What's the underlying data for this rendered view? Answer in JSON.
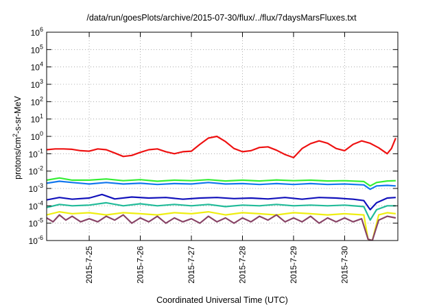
{
  "chart_data": {
    "type": "line",
    "title": "/data/run/goesPlots/archive/2015-07-30/flux/../flux/7daysMarsFluxes.txt",
    "xlabel": "Coordinated Universal Time (UTC)",
    "ylabel": {
      "prefix": "protons/cm",
      "sup": "2",
      "suffix": "-s-sr-MeV"
    },
    "y_scale": "log",
    "ylim": [
      1e-06,
      1000000.0
    ],
    "y_ticks": [
      {
        "value": 1e-06,
        "base": "10",
        "exp": "-6"
      },
      {
        "value": 1e-05,
        "base": "10",
        "exp": "-5"
      },
      {
        "value": 0.0001,
        "base": "10",
        "exp": "-4"
      },
      {
        "value": 0.001,
        "base": "10",
        "exp": "-3"
      },
      {
        "value": 0.01,
        "base": "10",
        "exp": "-2"
      },
      {
        "value": 0.1,
        "base": "10",
        "exp": "-1"
      },
      {
        "value": 1.0,
        "base": "10",
        "exp": "0"
      },
      {
        "value": 10.0,
        "base": "10",
        "exp": "1"
      },
      {
        "value": 100.0,
        "base": "10",
        "exp": "2"
      },
      {
        "value": 1000.0,
        "base": "10",
        "exp": "3"
      },
      {
        "value": 10000.0,
        "base": "10",
        "exp": "4"
      },
      {
        "value": 100000.0,
        "base": "10",
        "exp": "5"
      },
      {
        "value": 1000000.0,
        "base": "10",
        "exp": "6"
      }
    ],
    "x_range": [
      "2015-07-24T04:00",
      "2015-07-31T01:00"
    ],
    "x_ticks": [
      {
        "date": "2015-07-25",
        "label": "2015-7-25"
      },
      {
        "date": "2015-07-26",
        "label": "2015-7-26"
      },
      {
        "date": "2015-07-27",
        "label": "2015-7-27"
      },
      {
        "date": "2015-07-28",
        "label": "2015-7-28"
      },
      {
        "date": "2015-07-29",
        "label": "2015-7-29"
      },
      {
        "date": "2015-07-30",
        "label": "2015-7-30"
      }
    ],
    "grid": true,
    "grid_style": "dotted",
    "legend": "none",
    "series": [
      {
        "color": "#ee1111",
        "points": [
          [
            "2015-07-24T04:00",
            0.17
          ],
          [
            "2015-07-24T08:00",
            0.19
          ],
          [
            "2015-07-24T12:00",
            0.19
          ],
          [
            "2015-07-24T16:00",
            0.18
          ],
          [
            "2015-07-24T20:00",
            0.15
          ],
          [
            "2015-07-25T00:00",
            0.14
          ],
          [
            "2015-07-25T04:00",
            0.19
          ],
          [
            "2015-07-25T08:00",
            0.17
          ],
          [
            "2015-07-25T12:00",
            0.11
          ],
          [
            "2015-07-25T16:00",
            0.07
          ],
          [
            "2015-07-25T20:00",
            0.08
          ],
          [
            "2015-07-26T00:00",
            0.12
          ],
          [
            "2015-07-26T04:00",
            0.17
          ],
          [
            "2015-07-26T08:00",
            0.19
          ],
          [
            "2015-07-26T12:00",
            0.13
          ],
          [
            "2015-07-26T16:00",
            0.1
          ],
          [
            "2015-07-26T20:00",
            0.13
          ],
          [
            "2015-07-27T00:00",
            0.14
          ],
          [
            "2015-07-27T04:00",
            0.35
          ],
          [
            "2015-07-27T08:00",
            0.8
          ],
          [
            "2015-07-27T12:00",
            1.0
          ],
          [
            "2015-07-27T16:00",
            0.5
          ],
          [
            "2015-07-27T20:00",
            0.2
          ],
          [
            "2015-07-28T00:00",
            0.13
          ],
          [
            "2015-07-28T04:00",
            0.15
          ],
          [
            "2015-07-28T08:00",
            0.23
          ],
          [
            "2015-07-28T12:00",
            0.25
          ],
          [
            "2015-07-28T16:00",
            0.16
          ],
          [
            "2015-07-28T20:00",
            0.09
          ],
          [
            "2015-07-29T00:00",
            0.06
          ],
          [
            "2015-07-29T04:00",
            0.2
          ],
          [
            "2015-07-29T08:00",
            0.38
          ],
          [
            "2015-07-29T12:00",
            0.55
          ],
          [
            "2015-07-29T16:00",
            0.4
          ],
          [
            "2015-07-29T20:00",
            0.2
          ],
          [
            "2015-07-30T00:00",
            0.15
          ],
          [
            "2015-07-30T04:00",
            0.35
          ],
          [
            "2015-07-30T08:00",
            0.55
          ],
          [
            "2015-07-30T12:00",
            0.4
          ],
          [
            "2015-07-30T16:00",
            0.22
          ],
          [
            "2015-07-30T20:00",
            0.1
          ],
          [
            "2015-07-30T22:00",
            0.2
          ],
          [
            "2015-07-31T00:00",
            0.8
          ]
        ]
      },
      {
        "color": "#33ee33",
        "points": [
          [
            "2015-07-24T04:00",
            0.003
          ],
          [
            "2015-07-24T10:00",
            0.004
          ],
          [
            "2015-07-24T16:00",
            0.003
          ],
          [
            "2015-07-25T00:00",
            0.003
          ],
          [
            "2015-07-25T08:00",
            0.0035
          ],
          [
            "2015-07-25T16:00",
            0.0028
          ],
          [
            "2015-07-26T00:00",
            0.0032
          ],
          [
            "2015-07-26T08:00",
            0.0026
          ],
          [
            "2015-07-26T16:00",
            0.003
          ],
          [
            "2015-07-27T00:00",
            0.0028
          ],
          [
            "2015-07-27T08:00",
            0.0032
          ],
          [
            "2015-07-27T16:00",
            0.0027
          ],
          [
            "2015-07-28T00:00",
            0.003
          ],
          [
            "2015-07-28T08:00",
            0.0027
          ],
          [
            "2015-07-28T16:00",
            0.0031
          ],
          [
            "2015-07-29T00:00",
            0.0028
          ],
          [
            "2015-07-29T08:00",
            0.003
          ],
          [
            "2015-07-29T16:00",
            0.0027
          ],
          [
            "2015-07-30T00:00",
            0.0028
          ],
          [
            "2015-07-30T09:00",
            0.0025
          ],
          [
            "2015-07-30T12:00",
            0.0014
          ],
          [
            "2015-07-30T15:00",
            0.0022
          ],
          [
            "2015-07-30T20:00",
            0.0027
          ],
          [
            "2015-07-31T00:00",
            0.0028
          ]
        ]
      },
      {
        "color": "#1177ee",
        "points": [
          [
            "2015-07-24T04:00",
            0.002
          ],
          [
            "2015-07-24T10:00",
            0.0026
          ],
          [
            "2015-07-24T16:00",
            0.0022
          ],
          [
            "2015-07-25T00:00",
            0.0018
          ],
          [
            "2015-07-25T08:00",
            0.0022
          ],
          [
            "2015-07-25T16:00",
            0.0018
          ],
          [
            "2015-07-26T00:00",
            0.002
          ],
          [
            "2015-07-26T08:00",
            0.0017
          ],
          [
            "2015-07-26T16:00",
            0.0019
          ],
          [
            "2015-07-27T00:00",
            0.0018
          ],
          [
            "2015-07-27T08:00",
            0.0022
          ],
          [
            "2015-07-27T16:00",
            0.0018
          ],
          [
            "2015-07-28T00:00",
            0.0019
          ],
          [
            "2015-07-28T08:00",
            0.0017
          ],
          [
            "2015-07-28T16:00",
            0.0019
          ],
          [
            "2015-07-29T00:00",
            0.0017
          ],
          [
            "2015-07-29T08:00",
            0.0019
          ],
          [
            "2015-07-29T16:00",
            0.0017
          ],
          [
            "2015-07-30T00:00",
            0.0018
          ],
          [
            "2015-07-30T09:00",
            0.0016
          ],
          [
            "2015-07-30T12:00",
            0.0009
          ],
          [
            "2015-07-30T15:00",
            0.0014
          ],
          [
            "2015-07-30T20:00",
            0.0015
          ],
          [
            "2015-07-31T00:00",
            0.0014
          ]
        ]
      },
      {
        "color": "#1111bb",
        "points": [
          [
            "2015-07-24T04:00",
            0.00022
          ],
          [
            "2015-07-24T10:00",
            0.0003
          ],
          [
            "2015-07-24T16:00",
            0.00024
          ],
          [
            "2015-07-25T00:00",
            0.00028
          ],
          [
            "2015-07-25T06:00",
            0.00045
          ],
          [
            "2015-07-25T12:00",
            0.00025
          ],
          [
            "2015-07-25T20:00",
            0.00032
          ],
          [
            "2015-07-26T04:00",
            0.00028
          ],
          [
            "2015-07-26T12:00",
            0.0003
          ],
          [
            "2015-07-26T20:00",
            0.00024
          ],
          [
            "2015-07-27T04:00",
            0.00028
          ],
          [
            "2015-07-27T12:00",
            0.0003
          ],
          [
            "2015-07-27T20:00",
            0.00026
          ],
          [
            "2015-07-28T04:00",
            0.00028
          ],
          [
            "2015-07-28T12:00",
            0.00025
          ],
          [
            "2015-07-28T20:00",
            0.0003
          ],
          [
            "2015-07-29T04:00",
            0.00024
          ],
          [
            "2015-07-29T12:00",
            0.0003
          ],
          [
            "2015-07-29T20:00",
            0.00028
          ],
          [
            "2015-07-30T04:00",
            0.00024
          ],
          [
            "2015-07-30T09:00",
            0.0002
          ],
          [
            "2015-07-30T12:00",
            6e-05
          ],
          [
            "2015-07-30T15:00",
            0.00015
          ],
          [
            "2015-07-30T20:00",
            0.00028
          ],
          [
            "2015-07-31T00:00",
            0.0003
          ]
        ]
      },
      {
        "color": "#22bb99",
        "points": [
          [
            "2015-07-24T04:00",
            8e-05
          ],
          [
            "2015-07-24T10:00",
            0.00012
          ],
          [
            "2015-07-24T16:00",
            0.0001
          ],
          [
            "2015-07-25T00:00",
            0.00011
          ],
          [
            "2015-07-25T08:00",
            0.00015
          ],
          [
            "2015-07-25T16:00",
            0.0001
          ],
          [
            "2015-07-26T00:00",
            0.00013
          ],
          [
            "2015-07-26T08:00",
            0.0001
          ],
          [
            "2015-07-26T16:00",
            0.00012
          ],
          [
            "2015-07-27T00:00",
            0.0001
          ],
          [
            "2015-07-27T08:00",
            0.00012
          ],
          [
            "2015-07-27T16:00",
            9e-05
          ],
          [
            "2015-07-28T00:00",
            0.00011
          ],
          [
            "2015-07-28T08:00",
            0.0001
          ],
          [
            "2015-07-28T16:00",
            0.00012
          ],
          [
            "2015-07-29T00:00",
            0.0001
          ],
          [
            "2015-07-29T08:00",
            0.00011
          ],
          [
            "2015-07-29T16:00",
            0.0001
          ],
          [
            "2015-07-30T00:00",
            0.00011
          ],
          [
            "2015-07-30T09:00",
            9e-05
          ],
          [
            "2015-07-30T12:00",
            1.5e-05
          ],
          [
            "2015-07-30T15:00",
            6e-05
          ],
          [
            "2015-07-30T20:00",
            0.0001
          ],
          [
            "2015-07-31T00:00",
            0.0001
          ]
        ]
      },
      {
        "color": "#eeee11",
        "points": [
          [
            "2015-07-24T04:00",
            3e-05
          ],
          [
            "2015-07-24T10:00",
            4.5e-05
          ],
          [
            "2015-07-24T16:00",
            3.5e-05
          ],
          [
            "2015-07-25T00:00",
            4e-05
          ],
          [
            "2015-07-25T08:00",
            3e-05
          ],
          [
            "2015-07-25T16:00",
            4e-05
          ],
          [
            "2015-07-26T00:00",
            3.5e-05
          ],
          [
            "2015-07-26T08:00",
            3e-05
          ],
          [
            "2015-07-26T16:00",
            4e-05
          ],
          [
            "2015-07-27T00:00",
            3.5e-05
          ],
          [
            "2015-07-27T08:00",
            4.5e-05
          ],
          [
            "2015-07-27T16:00",
            3e-05
          ],
          [
            "2015-07-28T00:00",
            4e-05
          ],
          [
            "2015-07-28T08:00",
            3.5e-05
          ],
          [
            "2015-07-28T16:00",
            3e-05
          ],
          [
            "2015-07-29T00:00",
            4e-05
          ],
          [
            "2015-07-29T08:00",
            3.5e-05
          ],
          [
            "2015-07-29T16:00",
            3e-05
          ],
          [
            "2015-07-30T00:00",
            3.5e-05
          ],
          [
            "2015-07-30T09:00",
            3e-05
          ],
          [
            "2015-07-30T11:00",
            1.2e-06
          ],
          [
            "2015-07-30T13:00",
            1e-06
          ],
          [
            "2015-07-30T16:00",
            3e-05
          ],
          [
            "2015-07-30T20:00",
            4e-05
          ],
          [
            "2015-07-31T00:00",
            3.5e-05
          ]
        ]
      },
      {
        "color": "#884466",
        "points": [
          [
            "2015-07-24T04:00",
            2e-05
          ],
          [
            "2015-07-24T07:00",
            1.2e-05
          ],
          [
            "2015-07-24T10:00",
            3e-05
          ],
          [
            "2015-07-24T13:00",
            1.5e-05
          ],
          [
            "2015-07-24T16:00",
            2.5e-05
          ],
          [
            "2015-07-24T20:00",
            1.2e-05
          ],
          [
            "2015-07-25T00:00",
            1.8e-05
          ],
          [
            "2015-07-25T04:00",
            1.2e-05
          ],
          [
            "2015-07-25T08:00",
            2.5e-05
          ],
          [
            "2015-07-25T12:00",
            1.5e-05
          ],
          [
            "2015-07-25T16:00",
            3e-05
          ],
          [
            "2015-07-25T20:00",
            1e-05
          ],
          [
            "2015-07-26T00:00",
            2e-05
          ],
          [
            "2015-07-26T04:00",
            1.2e-05
          ],
          [
            "2015-07-26T08:00",
            2.5e-05
          ],
          [
            "2015-07-26T12:00",
            1e-05
          ],
          [
            "2015-07-26T16:00",
            2e-05
          ],
          [
            "2015-07-26T20:00",
            1.2e-05
          ],
          [
            "2015-07-27T00:00",
            1.8e-05
          ],
          [
            "2015-07-27T04:00",
            1e-05
          ],
          [
            "2015-07-27T08:00",
            2.5e-05
          ],
          [
            "2015-07-27T12:00",
            1.2e-05
          ],
          [
            "2015-07-27T16:00",
            2e-05
          ],
          [
            "2015-07-27T20:00",
            1e-05
          ],
          [
            "2015-07-28T00:00",
            2e-05
          ],
          [
            "2015-07-28T04:00",
            1.2e-05
          ],
          [
            "2015-07-28T08:00",
            2.5e-05
          ],
          [
            "2015-07-28T12:00",
            1.5e-05
          ],
          [
            "2015-07-28T16:00",
            3e-05
          ],
          [
            "2015-07-28T20:00",
            1.2e-05
          ],
          [
            "2015-07-29T00:00",
            2e-05
          ],
          [
            "2015-07-29T04:00",
            1.2e-05
          ],
          [
            "2015-07-29T08:00",
            2.5e-05
          ],
          [
            "2015-07-29T12:00",
            1e-05
          ],
          [
            "2015-07-29T16:00",
            2e-05
          ],
          [
            "2015-07-29T20:00",
            1.2e-05
          ],
          [
            "2015-07-30T00:00",
            2e-05
          ],
          [
            "2015-07-30T04:00",
            1.2e-05
          ],
          [
            "2015-07-30T08:00",
            1.8e-05
          ],
          [
            "2015-07-30T11:00",
            1.2e-06
          ],
          [
            "2015-07-30T13:00",
            1e-06
          ],
          [
            "2015-07-30T16:00",
            1.5e-05
          ],
          [
            "2015-07-30T20:00",
            2.5e-05
          ],
          [
            "2015-07-31T00:00",
            2e-05
          ]
        ]
      }
    ]
  }
}
